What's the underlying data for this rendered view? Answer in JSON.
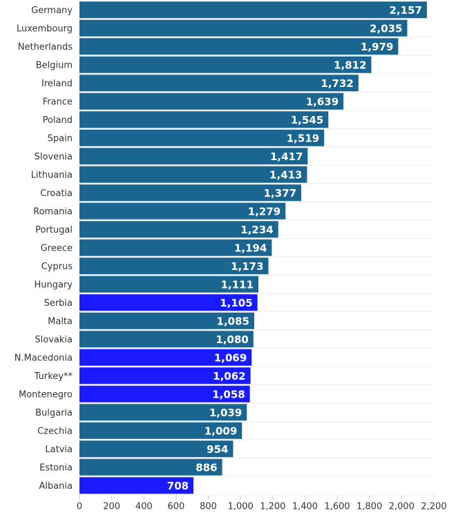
{
  "chart_data": {
    "type": "bar",
    "orientation": "horizontal",
    "categories": [
      "Germany",
      "Luxembourg",
      "Netherlands",
      "Belgium",
      "Ireland",
      "France",
      "Poland",
      "Spain",
      "Slovenia",
      "Lithuania",
      "Croatia",
      "Romania",
      "Portugal",
      "Greece",
      "Cyprus",
      "Hungary",
      "Serbia",
      "Malta",
      "Slovakia",
      "N.Macedonia",
      "Turkey**",
      "Montenegro",
      "Bulgaria",
      "Czechia",
      "Latvia",
      "Estonia",
      "Albania"
    ],
    "values": [
      2157,
      2035,
      1979,
      1812,
      1732,
      1639,
      1545,
      1519,
      1417,
      1413,
      1377,
      1279,
      1234,
      1194,
      1173,
      1111,
      1105,
      1085,
      1080,
      1069,
      1062,
      1058,
      1039,
      1009,
      954,
      886,
      708
    ],
    "value_labels": [
      "2,157",
      "2,035",
      "1,979",
      "1,812",
      "1,732",
      "1,639",
      "1,545",
      "1,519",
      "1,417",
      "1,413",
      "1,377",
      "1,279",
      "1,234",
      "1,194",
      "1,173",
      "1,111",
      "1,105",
      "1,085",
      "1,080",
      "1,069",
      "1,062",
      "1,058",
      "1,039",
      "1,009",
      "954",
      "886",
      "708"
    ],
    "highlighted": [
      "Serbia",
      "N.Macedonia",
      "Turkey**",
      "Montenegro",
      "Albania"
    ],
    "xlim": [
      0,
      2200
    ],
    "xticks": [
      "0",
      "200",
      "400",
      "600",
      "800",
      "1,000",
      "1,200",
      "1,400",
      "1,600",
      "1,800",
      "2,000",
      "2,200"
    ],
    "grid": "horizontal",
    "colors": {
      "default": "#1b6690",
      "highlight": "#1a1aff"
    }
  }
}
